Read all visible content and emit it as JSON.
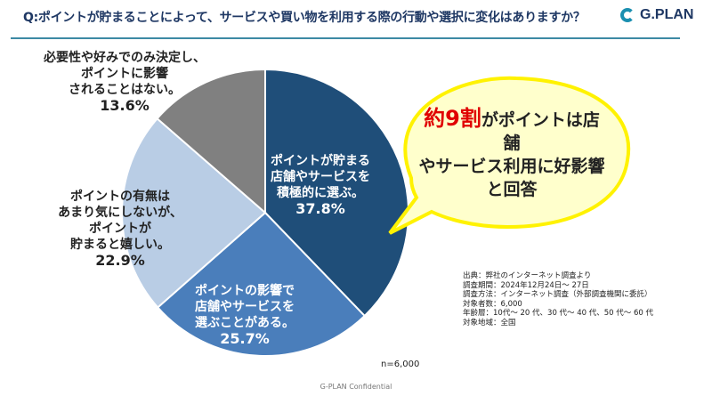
{
  "header": {
    "title": "Q:ポイントが貯まることによって、サービスや買い物を利用する際の行動や選択に変化はありますか？",
    "logo": "G.PLAN"
  },
  "chart_data": {
    "type": "pie",
    "title": "Q:ポイントが貯まることによって、サービスや買い物を利用する際の行動や選択に変化はありますか？",
    "slices": [
      {
        "lines": [
          "ポイントが貯まる",
          "店舗やサービスを",
          "積極的に選ぶ。"
        ],
        "value": 37.8,
        "value_label": "37.8%",
        "color": "#1f4e79"
      },
      {
        "lines": [
          "ポイントの影響で",
          "店舗やサービスを",
          "選ぶことがある。"
        ],
        "value": 25.7,
        "value_label": "25.7%",
        "color": "#4a7ebb"
      },
      {
        "lines": [
          "ポイントの有無は",
          "あまり気にしないが、",
          "ポイントが",
          "貯まると嬉しい。"
        ],
        "value": 22.9,
        "value_label": "22.9%",
        "color": "#b9cde5"
      },
      {
        "lines": [
          "必要性や好みでのみ決定し、",
          "ポイントに影響",
          "されることはない。"
        ],
        "value": 13.6,
        "value_label": "13.6%",
        "color": "#808080"
      }
    ],
    "sample": "n=6,000"
  },
  "callout": {
    "highlight": "約9割",
    "text1": "がポイントは店舗",
    "text2": "やサービス利用に好影響",
    "text3": "と回答"
  },
  "source": [
    "出典：弊社のインターネット調査より",
    "調査期間：2024年12月24日～ 27日",
    "調査方法：インターネット調査（外部調査機関に委託）",
    "対象者数：6,000",
    "年齢層：10代～ 20 代、30 代～ 40 代、50 代～ 60 代",
    "対象地域：全国"
  ],
  "footer": "G-PLAN Confidential"
}
